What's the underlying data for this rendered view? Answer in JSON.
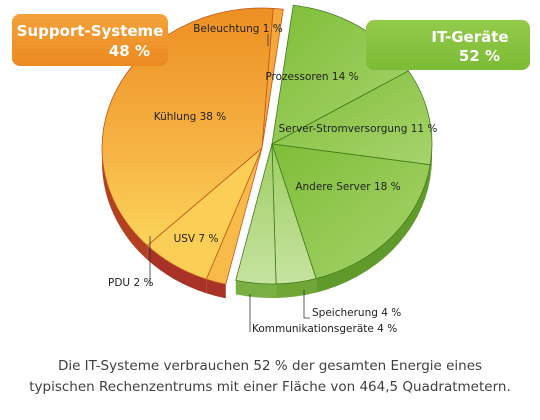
{
  "chart_data": {
    "type": "pie",
    "groups": [
      {
        "name": "Support-Systeme",
        "value": "48 %",
        "color": "#f0962a"
      },
      {
        "name": "IT-Geräte",
        "value": "52 %",
        "color": "#8cc641"
      }
    ],
    "slices": [
      {
        "label": "Beleuchtung 1 %",
        "value": 1,
        "group": "Support-Systeme",
        "color": "#f5a43a"
      },
      {
        "label": "Prozessoren 14 %",
        "value": 14,
        "group": "IT-Geräte",
        "color": "#8cc641"
      },
      {
        "label": "Server-Stromversorgung 11 %",
        "value": 11,
        "group": "IT-Geräte",
        "color": "#8cc641"
      },
      {
        "label": "Andere Server 18 %",
        "value": 18,
        "group": "IT-Geräte",
        "color": "#8cc641"
      },
      {
        "label": "Speicherung 4 %",
        "value": 4,
        "group": "IT-Geräte",
        "color": "#a6d16b"
      },
      {
        "label": "Kommunikationsgeräte 4 %",
        "value": 4,
        "group": "IT-Geräte",
        "color": "#b7d987"
      },
      {
        "label": "PDU 2 %",
        "value": 2,
        "group": "Support-Systeme",
        "color": "#f7b54c"
      },
      {
        "label": "USV 7 %",
        "value": 7,
        "group": "Support-Systeme",
        "color": "#f8c64a"
      },
      {
        "label": "Kühlung 38 %",
        "value": 38,
        "group": "Support-Systeme",
        "color": "#f39a2e"
      }
    ],
    "caption": [
      "Die IT-Systeme verbrauchen 52 % der gesamten Energie eines",
      "typischen Rechenzentrums mit einer Fläche von 464,5 Quadratmetern."
    ]
  }
}
